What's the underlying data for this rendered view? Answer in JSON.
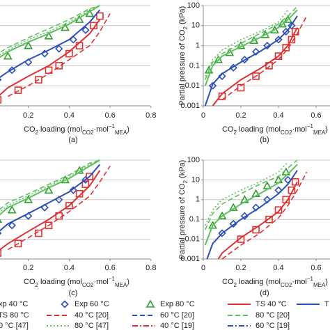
{
  "chart_data": [
    {
      "type": "line",
      "panel_label": "(a)",
      "log_y": true,
      "grid": true,
      "xlim": [
        0,
        0.8
      ],
      "ylim": [
        0.001,
        100
      ],
      "xticks": [
        0.2,
        0.4,
        0.6,
        0.8
      ],
      "yticks": [],
      "xlabel_parts": [
        "CO",
        "2",
        " loading (mol",
        "CO2",
        "·mol",
        "−1",
        "MEA",
        ")"
      ],
      "series": [
        {
          "color": "#2ca02c",
          "marker": "triangle",
          "x": [
            0.1,
            0.2,
            0.3,
            0.38,
            0.45,
            0.5
          ],
          "values": [
            0.3,
            1,
            3,
            8,
            20,
            40
          ]
        },
        {
          "color": "#2b4fb5",
          "marker": "diamond",
          "x": [
            0.05,
            0.12,
            0.2,
            0.28,
            0.35,
            0.42,
            0.48
          ],
          "values": [
            0.02,
            0.06,
            0.15,
            0.4,
            0.7,
            2,
            6
          ]
        },
        {
          "color": "#e03030",
          "marker": "square",
          "x": [
            0.05,
            0.15,
            0.25,
            0.3,
            0.35,
            0.4,
            0.45,
            0.52,
            0.55
          ],
          "values": [
            0.002,
            0.006,
            0.02,
            0.06,
            0.1,
            0.4,
            1,
            10,
            30
          ]
        },
        {
          "color": "#5cc05c",
          "dash": "solid",
          "x": [
            0,
            0.1,
            0.2,
            0.3,
            0.4,
            0.5,
            0.55
          ],
          "values": [
            0.1,
            0.5,
            1.5,
            4,
            12,
            50,
            100
          ]
        },
        {
          "color": "#2b4fb5",
          "dash": "solid",
          "x": [
            0,
            0.1,
            0.2,
            0.3,
            0.4,
            0.5,
            0.55
          ],
          "values": [
            0.01,
            0.05,
            0.2,
            0.6,
            2,
            15,
            60
          ]
        },
        {
          "color": "#e03030",
          "dash": "solid",
          "x": [
            0,
            0.1,
            0.2,
            0.3,
            0.4,
            0.5,
            0.55
          ],
          "values": [
            0.001,
            0.008,
            0.03,
            0.1,
            0.5,
            4,
            20
          ]
        },
        {
          "color": "#5cc05c",
          "dash": "dash",
          "x": [
            0,
            0.1,
            0.2,
            0.3,
            0.4,
            0.5,
            0.55
          ],
          "values": [
            0.2,
            0.8,
            2.5,
            7,
            20,
            70,
            100
          ]
        },
        {
          "color": "#e03030",
          "dash": "dash",
          "x": [
            0.1,
            0.2,
            0.3,
            0.4,
            0.5,
            0.55,
            0.6
          ],
          "values": [
            0.003,
            0.01,
            0.04,
            0.2,
            1,
            5,
            40
          ]
        },
        {
          "color": "#5cc05c",
          "dash": "dot",
          "x": [
            0,
            0.1,
            0.2,
            0.3,
            0.4,
            0.5,
            0.55
          ],
          "values": [
            0.15,
            0.6,
            2,
            5,
            15,
            60,
            100
          ]
        }
      ]
    },
    {
      "type": "line",
      "panel_label": "(b)",
      "log_y": true,
      "grid": true,
      "ylabel_parts": [
        "Partial pressure of CO",
        "2",
        " (kPa)"
      ],
      "xlim": [
        0,
        0.8
      ],
      "ylim": [
        0.001,
        100
      ],
      "xticks": [
        0,
        0.2,
        0.4,
        0.6
      ],
      "yticks": [
        0.001,
        0.01,
        0.1,
        1,
        10,
        100
      ],
      "xlabel_parts": [
        "CO",
        "2",
        " loading (mol",
        "CO2",
        "·mol",
        "−1",
        "MEA",
        ")"
      ],
      "series": [
        {
          "color": "#2ca02c",
          "marker": "triangle",
          "x": [
            0.03,
            0.08,
            0.14,
            0.2,
            0.27,
            0.33,
            0.38,
            0.42,
            0.45
          ],
          "values": [
            0.06,
            0.2,
            0.45,
            1,
            1.8,
            3.5,
            6,
            12,
            20
          ]
        },
        {
          "color": "#2b4fb5",
          "marker": "diamond",
          "x": [
            0.05,
            0.1,
            0.16,
            0.22,
            0.28,
            0.34,
            0.4,
            0.44,
            0.47
          ],
          "values": [
            0.01,
            0.03,
            0.08,
            0.2,
            0.5,
            1,
            2,
            5,
            10
          ]
        },
        {
          "color": "#e03030",
          "marker": "square",
          "x": [
            0.1,
            0.2,
            0.28,
            0.35,
            0.4,
            0.44,
            0.47,
            0.49
          ],
          "values": [
            0.003,
            0.008,
            0.03,
            0.1,
            0.3,
            0.8,
            2,
            5
          ]
        },
        {
          "color": "#5cc05c",
          "dash": "solid",
          "x": [
            0.01,
            0.05,
            0.1,
            0.2,
            0.3,
            0.4,
            0.45,
            0.5
          ],
          "values": [
            0.01,
            0.1,
            0.3,
            0.9,
            2.5,
            8,
            20,
            60
          ]
        },
        {
          "color": "#2b4fb5",
          "dash": "solid",
          "x": [
            0.01,
            0.05,
            0.1,
            0.2,
            0.3,
            0.4,
            0.45,
            0.5
          ],
          "values": [
            0.001,
            0.012,
            0.04,
            0.15,
            0.5,
            2,
            6,
            30
          ]
        },
        {
          "color": "#e03030",
          "dash": "solid",
          "x": [
            0.05,
            0.1,
            0.2,
            0.3,
            0.4,
            0.45,
            0.5
          ],
          "values": [
            0.001,
            0.004,
            0.02,
            0.07,
            0.3,
            1,
            8
          ]
        },
        {
          "color": "#5cc05c",
          "dash": "dash",
          "x": [
            0.01,
            0.05,
            0.1,
            0.2,
            0.3,
            0.4,
            0.45,
            0.5
          ],
          "values": [
            0.02,
            0.15,
            0.4,
            1.3,
            4,
            12,
            30,
            90
          ]
        },
        {
          "color": "#e03030",
          "dash": "dash",
          "x": [
            0.1,
            0.2,
            0.3,
            0.4,
            0.45,
            0.5,
            0.55
          ],
          "values": [
            0.002,
            0.01,
            0.04,
            0.2,
            0.7,
            4,
            30
          ]
        },
        {
          "color": "#5cc05c",
          "dash": "dot",
          "x": [
            0.01,
            0.05,
            0.1,
            0.2,
            0.3,
            0.4,
            0.45
          ],
          "values": [
            0.03,
            0.2,
            0.6,
            2,
            5,
            15,
            60
          ]
        }
      ]
    },
    {
      "type": "line",
      "panel_label": "(c)",
      "log_y": true,
      "grid": true,
      "xlim": [
        0,
        0.8
      ],
      "ylim": [
        0.001,
        100
      ],
      "xticks": [
        0.2,
        0.4,
        0.6,
        0.8
      ],
      "yticks": [],
      "xlabel_parts": [
        "CO",
        "2",
        " loading (mol",
        "CO2",
        "·mol",
        "−1",
        "MEA",
        ")"
      ],
      "series": [
        {
          "color": "#2ca02c",
          "marker": "triangle",
          "x": [
            0.05,
            0.12,
            0.2,
            0.3,
            0.38,
            0.45
          ],
          "values": [
            0.1,
            0.3,
            1,
            3,
            10,
            30
          ]
        },
        {
          "color": "#2b4fb5",
          "marker": "diamond",
          "x": [
            0.05,
            0.12,
            0.2,
            0.28,
            0.35,
            0.42,
            0.48
          ],
          "values": [
            0.02,
            0.05,
            0.15,
            0.4,
            1,
            3,
            10
          ]
        },
        {
          "color": "#e03030",
          "marker": "square",
          "x": [
            0.05,
            0.15,
            0.25,
            0.3,
            0.35,
            0.4,
            0.45,
            0.48,
            0.5
          ],
          "values": [
            0.002,
            0.006,
            0.02,
            0.05,
            0.15,
            0.5,
            2,
            6,
            15
          ]
        },
        {
          "color": "#5cc05c",
          "dash": "solid",
          "x": [
            0,
            0.1,
            0.2,
            0.3,
            0.4,
            0.5,
            0.55
          ],
          "values": [
            0.05,
            0.4,
            1.2,
            4,
            12,
            50,
            100
          ]
        },
        {
          "color": "#2b4fb5",
          "dash": "solid",
          "x": [
            0,
            0.1,
            0.2,
            0.3,
            0.4,
            0.5,
            0.55
          ],
          "values": [
            0.008,
            0.06,
            0.2,
            0.7,
            2.5,
            15,
            60
          ]
        },
        {
          "color": "#e03030",
          "dash": "solid",
          "x": [
            0,
            0.1,
            0.2,
            0.3,
            0.4,
            0.5,
            0.55
          ],
          "values": [
            0.001,
            0.006,
            0.025,
            0.1,
            0.5,
            5,
            30
          ]
        },
        {
          "color": "#5cc05c",
          "dash": "dash",
          "x": [
            0,
            0.1,
            0.2,
            0.3,
            0.4,
            0.5,
            0.55
          ],
          "values": [
            0.1,
            0.7,
            2,
            6,
            18,
            70,
            100
          ]
        },
        {
          "color": "#e03030",
          "dash": "dash",
          "x": [
            0.1,
            0.2,
            0.3,
            0.4,
            0.5,
            0.55,
            0.6
          ],
          "values": [
            0.003,
            0.012,
            0.05,
            0.25,
            1.5,
            8,
            50
          ]
        },
        {
          "color": "#5cc05c",
          "dash": "dot",
          "x": [
            0,
            0.1,
            0.2,
            0.3,
            0.4,
            0.5,
            0.55
          ],
          "values": [
            0.08,
            0.5,
            1.6,
            5,
            15,
            60,
            100
          ]
        }
      ]
    },
    {
      "type": "line",
      "panel_label": "(d)",
      "log_y": true,
      "grid": true,
      "ylabel_parts": [
        "Partial pressure of CO",
        "2",
        " (kPa)"
      ],
      "xlim": [
        0,
        0.8
      ],
      "ylim": [
        0.001,
        100
      ],
      "xticks": [
        0,
        0.2,
        0.4,
        0.6
      ],
      "yticks": [
        0.001,
        0.01,
        0.1,
        1,
        10,
        100
      ],
      "xlabel_parts": [
        "CO",
        "2",
        " loading (mol",
        "CO2",
        "·mol",
        "−1",
        "MEA",
        ")"
      ],
      "series": [
        {
          "color": "#2ca02c",
          "marker": "triangle",
          "x": [
            0.05,
            0.1,
            0.16,
            0.22,
            0.28,
            0.34,
            0.4,
            0.44
          ],
          "values": [
            0.05,
            0.15,
            0.4,
            1,
            2,
            5,
            10,
            25
          ]
        },
        {
          "color": "#2b4fb5",
          "marker": "diamond",
          "x": [
            0.1,
            0.16,
            0.22,
            0.28,
            0.34,
            0.4,
            0.45
          ],
          "values": [
            0.02,
            0.06,
            0.15,
            0.4,
            1,
            3,
            10
          ]
        },
        {
          "color": "#e03030",
          "marker": "square",
          "x": [
            0.2,
            0.28,
            0.35,
            0.4,
            0.44,
            0.47,
            0.49
          ],
          "values": [
            0.01,
            0.03,
            0.1,
            0.3,
            1,
            3,
            8
          ]
        },
        {
          "color": "#5cc05c",
          "dash": "solid",
          "x": [
            0.01,
            0.05,
            0.1,
            0.2,
            0.3,
            0.4,
            0.45,
            0.5
          ],
          "values": [
            0.005,
            0.05,
            0.15,
            0.6,
            2,
            7,
            20,
            60
          ]
        },
        {
          "color": "#2b4fb5",
          "dash": "solid",
          "x": [
            0.02,
            0.05,
            0.1,
            0.2,
            0.3,
            0.4,
            0.45,
            0.5
          ],
          "values": [
            0.001,
            0.006,
            0.02,
            0.1,
            0.4,
            2,
            6,
            30
          ]
        },
        {
          "color": "#e03030",
          "dash": "solid",
          "x": [
            0.08,
            0.1,
            0.2,
            0.3,
            0.4,
            0.45,
            0.5
          ],
          "values": [
            0.001,
            0.002,
            0.012,
            0.05,
            0.25,
            1,
            8
          ]
        },
        {
          "color": "#5cc05c",
          "dash": "dash",
          "x": [
            0.01,
            0.05,
            0.1,
            0.2,
            0.3,
            0.4,
            0.45,
            0.5
          ],
          "values": [
            0.03,
            0.2,
            0.6,
            2,
            6,
            15,
            40,
            100
          ]
        },
        {
          "color": "#e03030",
          "dash": "dash",
          "x": [
            0.1,
            0.2,
            0.3,
            0.4,
            0.45,
            0.5,
            0.55
          ],
          "values": [
            0.001,
            0.005,
            0.02,
            0.12,
            0.5,
            3,
            25
          ]
        },
        {
          "color": "#5cc05c",
          "dash": "dot",
          "x": [
            0.01,
            0.05,
            0.1,
            0.2,
            0.3,
            0.4,
            0.45
          ],
          "values": [
            0.05,
            0.3,
            1,
            3,
            8,
            25,
            80
          ]
        }
      ]
    }
  ],
  "legend": [
    {
      "label": "xp 40 °C",
      "color": "#e03030",
      "marker": "square"
    },
    {
      "label": "Exp 60 °C",
      "color": "#2b4fb5",
      "marker": "diamond"
    },
    {
      "label": "Exp 80 °C",
      "color": "#2ca02c",
      "marker": "triangle"
    },
    {
      "label": "TS 40 °C",
      "color": "#e03030",
      "dash": "solid"
    },
    {
      "label": "T",
      "color": "#2b4fb5",
      "dash": "solid"
    },
    {
      "label": "TS 80 °C",
      "color": "#5cc05c",
      "dash": "solid"
    },
    {
      "label": "40 °C [20]",
      "color": "#e03030",
      "dash": "dash"
    },
    {
      "label": "60 °C [20]",
      "color": "#2b4fb5",
      "dash": "dash"
    },
    {
      "label": "80 °C [20]",
      "color": "#5cc05c",
      "dash": "dash"
    },
    {
      "label": "0 °C [47]",
      "color": "#e03030",
      "dash": "dot"
    },
    {
      "label": "80 °C [47]",
      "color": "#5cc05c",
      "dash": "dot"
    },
    {
      "label": "40 °C [19]",
      "color": "#e03030",
      "dash": "dashdot"
    },
    {
      "label": "60 °C [19]",
      "color": "#2b4fb5",
      "dash": "dashdot"
    }
  ]
}
